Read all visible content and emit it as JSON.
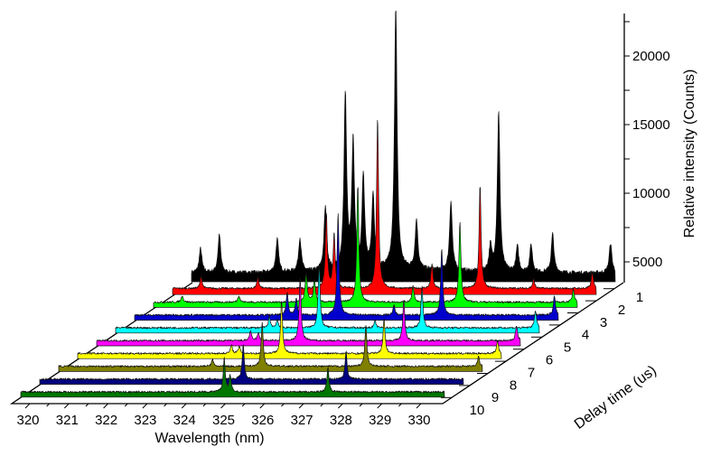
{
  "chart_data": {
    "type": "area",
    "subtype": "3d-waterfall",
    "title": "",
    "xlabel": "Wavelength (nm)",
    "ylabel": "Delay time (us)",
    "zlabel": "Relative intensity (Counts)",
    "xlim": [
      320,
      330.6
    ],
    "x_ticks": [
      "320",
      "321",
      "322",
      "323",
      "324",
      "325",
      "326",
      "327",
      "328",
      "329",
      "330"
    ],
    "y_ticks": [
      "1",
      "2",
      "3",
      "4",
      "5",
      "6",
      "7",
      "8",
      "9",
      "10"
    ],
    "zlim": [
      3700,
      23500
    ],
    "z_ticks": [
      "5000",
      "10000",
      "15000",
      "20000"
    ],
    "grid": false,
    "legend": "none",
    "series": [
      {
        "name": "1",
        "color": "#000000",
        "floor": 650,
        "peaks": [
          [
            320.0,
            1780
          ],
          [
            320.48,
            2760
          ],
          [
            321.96,
            2430
          ],
          [
            322.54,
            2430
          ],
          [
            323.19,
            4600
          ],
          [
            323.7,
            12700
          ],
          [
            323.9,
            9200
          ],
          [
            324.16,
            6700
          ],
          [
            324.41,
            5460
          ],
          [
            324.99,
            19150
          ],
          [
            325.52,
            3600
          ],
          [
            326.4,
            5070
          ],
          [
            327.41,
            1800
          ],
          [
            327.62,
            11650
          ],
          [
            328.1,
            1850
          ],
          [
            328.45,
            2000
          ],
          [
            329.0,
            2830
          ],
          [
            330.48,
            2170
          ]
        ]
      },
      {
        "name": "2",
        "color": "#ff0000",
        "floor": 450,
        "peaks": [
          [
            320.5,
            900
          ],
          [
            321.95,
            800
          ],
          [
            323.7,
            5500
          ],
          [
            323.9,
            4000
          ],
          [
            325.01,
            12500
          ],
          [
            326.4,
            1800
          ],
          [
            327.63,
            7560
          ],
          [
            329.0,
            700
          ],
          [
            330.5,
            1200
          ]
        ]
      },
      {
        "name": "3",
        "color": "#00ff00",
        "floor": 380,
        "peaks": [
          [
            320.5,
            500
          ],
          [
            321.95,
            500
          ],
          [
            323.67,
            2200
          ],
          [
            323.88,
            1650
          ],
          [
            324.99,
            8600
          ],
          [
            326.4,
            1200
          ],
          [
            327.6,
            5900
          ],
          [
            330.5,
            1000
          ]
        ]
      },
      {
        "name": "4",
        "color": "#0000cc",
        "floor": 380,
        "peaks": [
          [
            323.67,
            1650
          ],
          [
            323.9,
            1200
          ],
          [
            324.97,
            7400
          ],
          [
            326.4,
            700
          ],
          [
            327.62,
            4900
          ],
          [
            330.5,
            1400
          ]
        ]
      },
      {
        "name": "5",
        "color": "#00ffff",
        "floor": 380,
        "peaks": [
          [
            323.7,
            800
          ],
          [
            323.9,
            600
          ],
          [
            324.97,
            4700
          ],
          [
            326.4,
            500
          ],
          [
            327.6,
            3000
          ],
          [
            330.5,
            1300
          ]
        ]
      },
      {
        "name": "6",
        "color": "#ff00ff",
        "floor": 380,
        "peaks": [
          [
            323.7,
            700
          ],
          [
            323.9,
            550
          ],
          [
            324.97,
            4600
          ],
          [
            327.62,
            3000
          ],
          [
            330.5,
            1100
          ]
        ]
      },
      {
        "name": "7",
        "color": "#ffff00",
        "floor": 380,
        "peaks": [
          [
            323.7,
            600
          ],
          [
            323.9,
            500
          ],
          [
            324.98,
            3800
          ],
          [
            327.6,
            2500
          ],
          [
            330.5,
            900
          ]
        ]
      },
      {
        "name": "8",
        "color": "#808000",
        "floor": 380,
        "peaks": [
          [
            323.7,
            500
          ],
          [
            324.97,
            3200
          ],
          [
            327.62,
            3000
          ],
          [
            330.5,
            700
          ]
        ]
      },
      {
        "name": "9",
        "color": "#000080",
        "floor": 380,
        "peaks": [
          [
            324.97,
            2560
          ],
          [
            327.6,
            2040
          ]
        ]
      },
      {
        "name": "10",
        "color": "#007700",
        "floor": 380,
        "peaks": [
          [
            324.97,
            2430
          ],
          [
            325.12,
            1200
          ],
          [
            327.62,
            1780
          ]
        ]
      }
    ]
  }
}
